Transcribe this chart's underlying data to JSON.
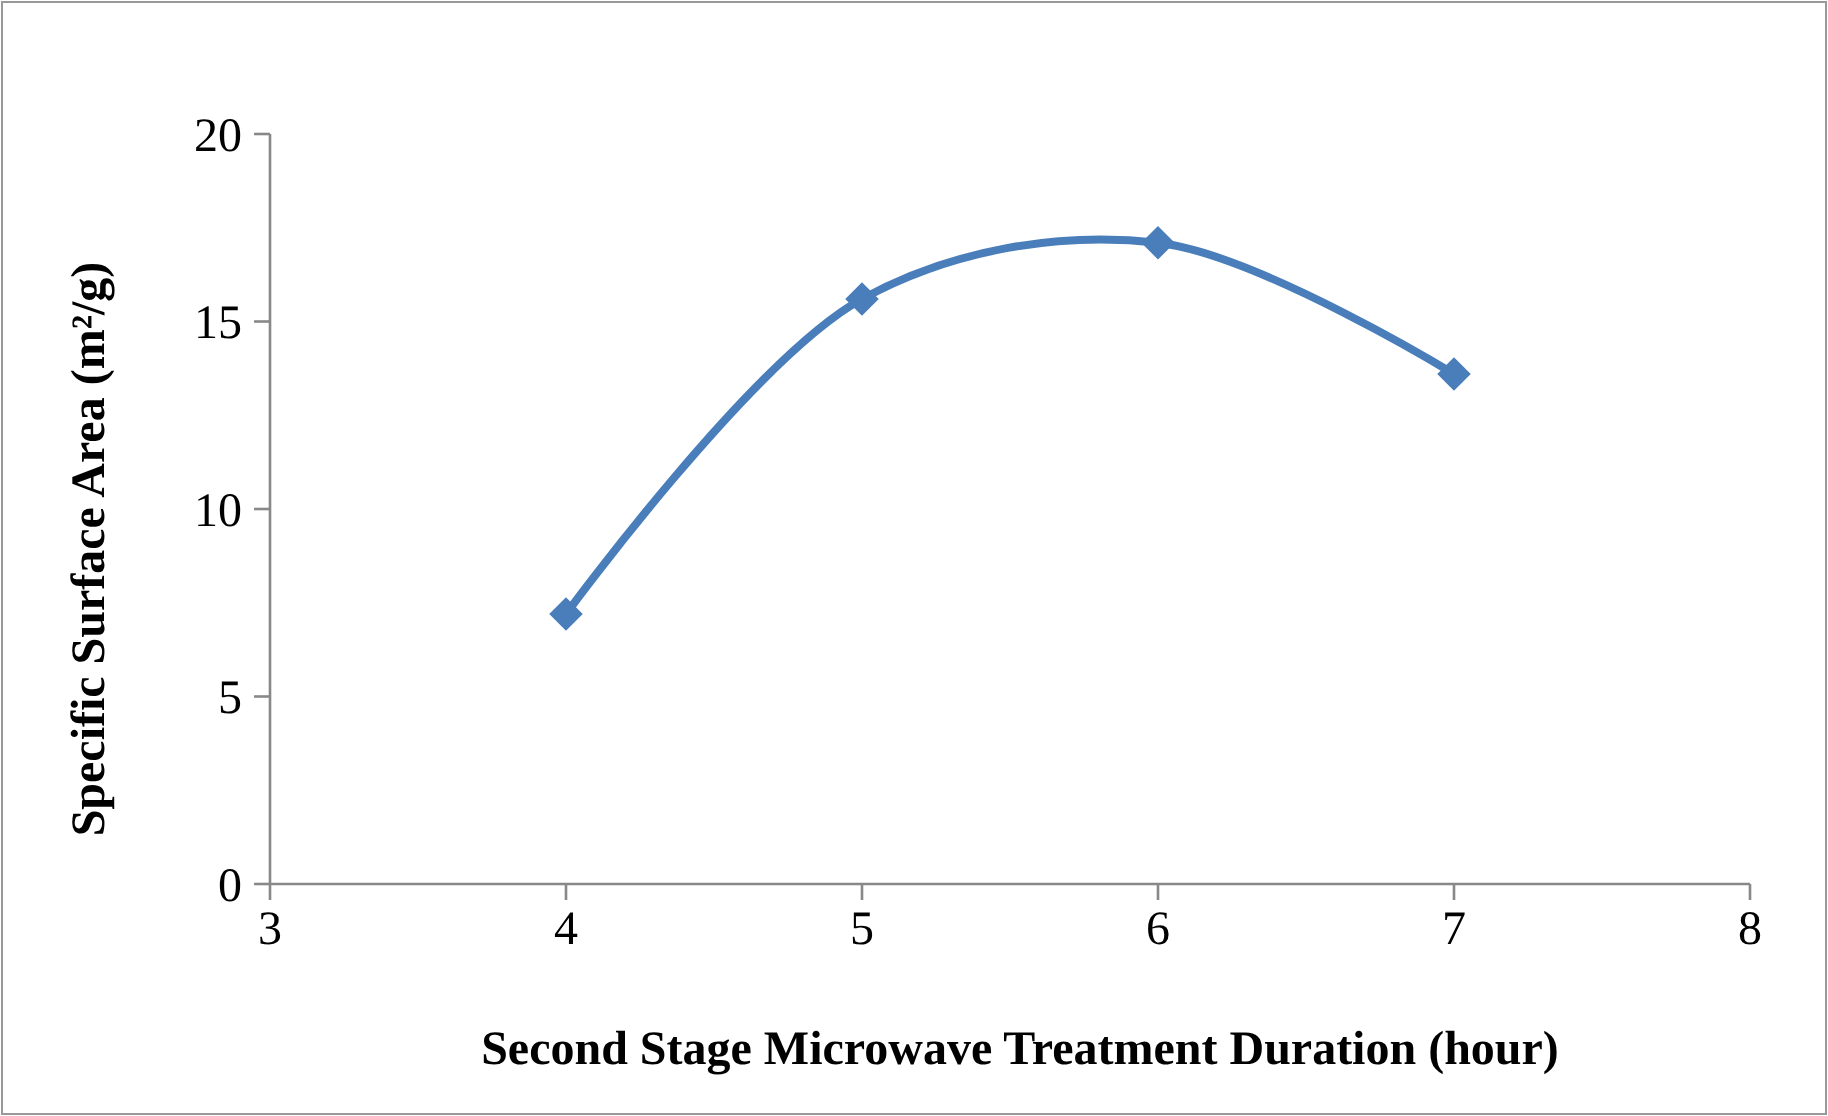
{
  "chart_data": {
    "type": "line",
    "xlabel": "Second Stage Microwave Treatment Duration (hour)",
    "ylabel": "Specific Surface Area (m²/g)",
    "x": [
      4,
      5,
      6,
      7
    ],
    "series": [
      {
        "color": "#4a7ebb",
        "values": [
          7.2,
          15.6,
          17.1,
          13.6
        ]
      }
    ],
    "xlim": [
      3,
      8
    ],
    "xticks": [
      3,
      4,
      5,
      6,
      7,
      8
    ],
    "ylim": [
      0,
      20
    ],
    "yticks": [
      0,
      5,
      10,
      15,
      20
    ],
    "marker": "diamond",
    "line_style": "solid"
  }
}
